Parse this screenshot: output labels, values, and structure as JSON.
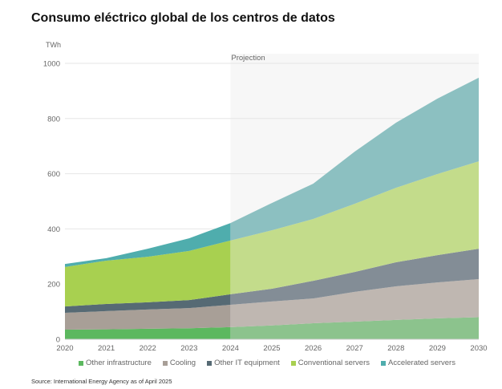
{
  "title": "Consumo eléctrico global de los centros de datos",
  "source": "Source: International Energy Agency as of April 2025",
  "chart_data": {
    "type": "area",
    "stacked": true,
    "title": "Consumo eléctrico global de los centros de datos",
    "ylabel": "TWh",
    "xlabel": "",
    "ylim": [
      0,
      1000
    ],
    "yticks": [
      "0",
      "200",
      "400",
      "600",
      "800",
      "1000"
    ],
    "ytick_values": [
      0,
      200,
      400,
      600,
      800,
      1000
    ],
    "x": [
      "2020",
      "2021",
      "2022",
      "2023",
      "2024",
      "2025",
      "2026",
      "2027",
      "2028",
      "2029",
      "2030"
    ],
    "projection": {
      "label": "Projection",
      "from": "2024",
      "to": "2030"
    },
    "grid": true,
    "legend_position": "bottom",
    "series": [
      {
        "name": "Other infrastructure",
        "color": "#5cb85f",
        "projected_color": "#8cc38d",
        "values": [
          35,
          36,
          38,
          40,
          44,
          50,
          58,
          64,
          70,
          76,
          80
        ]
      },
      {
        "name": "Cooling",
        "color": "#a89f97",
        "projected_color": "#bfb7b1",
        "values": [
          61,
          66,
          70,
          73,
          81,
          87,
          90,
          108,
          122,
          130,
          138
        ]
      },
      {
        "name": "Other IT equipment",
        "color": "#566a74",
        "projected_color": "#838d96",
        "values": [
          23,
          26,
          26,
          29,
          38,
          46,
          64,
          72,
          87,
          99,
          110
        ]
      },
      {
        "name": "Conventional servers",
        "color": "#a8d050",
        "projected_color": "#c3dc8b",
        "values": [
          143,
          157,
          165,
          178,
          195,
          212,
          224,
          247,
          270,
          294,
          317
        ]
      },
      {
        "name": "Accelerated servers",
        "color": "#4fadad",
        "projected_color": "#8cc0c1",
        "values": [
          11,
          9,
          29,
          46,
          63,
          99,
          128,
          189,
          236,
          273,
          303
        ]
      }
    ]
  }
}
